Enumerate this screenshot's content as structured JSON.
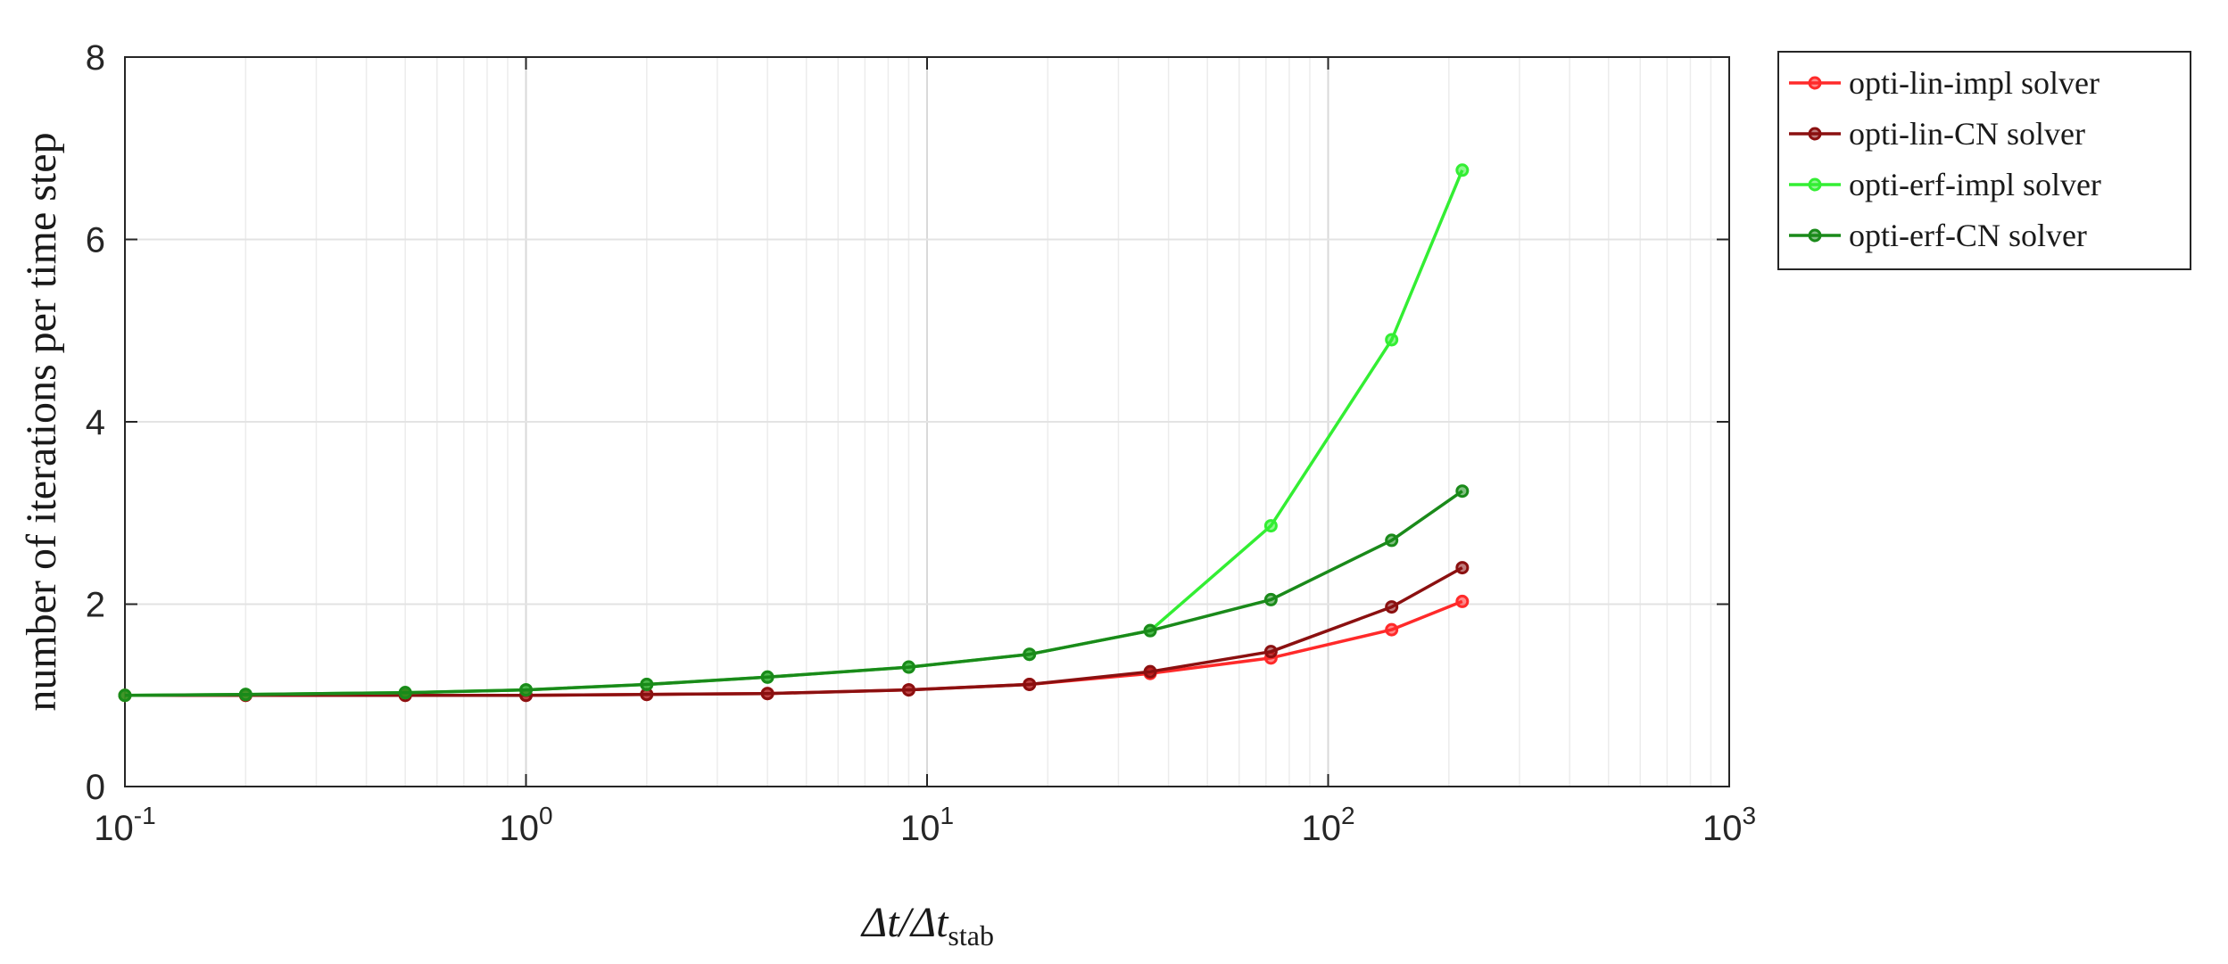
{
  "chart_data": {
    "type": "line",
    "title": "",
    "xscale": "log",
    "xlim": [
      0.1,
      1000
    ],
    "ylim": [
      0,
      8
    ],
    "xlabel": "Δt/Δt",
    "xlabel_sub": "stab",
    "ylabel": "number of iterations per time step",
    "x_ticks": [
      {
        "value": 0.1,
        "base": "10",
        "exp": "-1"
      },
      {
        "value": 1,
        "base": "10",
        "exp": "0"
      },
      {
        "value": 10,
        "base": "10",
        "exp": "1"
      },
      {
        "value": 100,
        "base": "10",
        "exp": "2"
      },
      {
        "value": 1000,
        "base": "10",
        "exp": "3"
      }
    ],
    "y_ticks": [
      0,
      2,
      4,
      6,
      8
    ],
    "grid": true,
    "legend_position": "outside-top-right",
    "x": [
      0.1,
      0.2,
      0.5,
      1,
      2,
      4,
      9,
      18,
      36,
      72,
      144,
      216
    ],
    "series": [
      {
        "name": "opti-lin-impl solver",
        "color": "#ff2a2a",
        "values": [
          1.0,
          1.0,
          1.0,
          1.0,
          1.01,
          1.02,
          1.06,
          1.12,
          1.24,
          1.41,
          1.72,
          2.03
        ]
      },
      {
        "name": "opti-lin-CN solver",
        "color": "#8b1010",
        "values": [
          1.0,
          1.0,
          1.0,
          1.0,
          1.01,
          1.02,
          1.06,
          1.12,
          1.26,
          1.48,
          1.97,
          2.4
        ]
      },
      {
        "name": "opti-erf-impl solver",
        "color": "#33ee33",
        "values": [
          1.0,
          1.01,
          1.03,
          1.06,
          1.12,
          1.2,
          1.31,
          1.45,
          1.71,
          2.86,
          4.9,
          6.76
        ]
      },
      {
        "name": "opti-erf-CN solver",
        "color": "#1a8a1a",
        "values": [
          1.0,
          1.01,
          1.03,
          1.06,
          1.12,
          1.2,
          1.31,
          1.45,
          1.71,
          2.05,
          2.7,
          3.24
        ]
      }
    ]
  }
}
